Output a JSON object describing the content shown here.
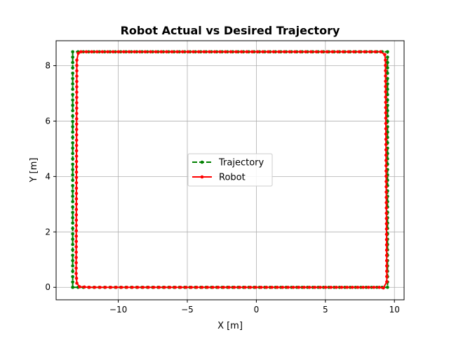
{
  "chart_data": {
    "type": "line",
    "title": "Robot Actual vs Desired Trajectory",
    "xlabel": "X [m]",
    "ylabel": "Y [m]",
    "xlim": [
      -14.5,
      10.7
    ],
    "ylim": [
      -0.45,
      8.9
    ],
    "xticks": [
      -10,
      -5,
      0,
      5,
      10
    ],
    "yticks": [
      0,
      2,
      4,
      6,
      8
    ],
    "grid": true,
    "legend_position": "center",
    "series": [
      {
        "name": "Trajectory",
        "color": "#008000",
        "style": "dashed",
        "marker": "circle",
        "path": [
          [
            -13.3,
            0.0
          ],
          [
            -13.3,
            8.5
          ],
          [
            9.5,
            8.5
          ],
          [
            9.5,
            0.0
          ],
          [
            -13.3,
            0.0
          ]
        ]
      },
      {
        "name": "Robot",
        "color": "#ff0000",
        "style": "solid",
        "marker": "circle",
        "path": [
          [
            -12.1,
            0.0
          ],
          [
            -12.8,
            0.02
          ],
          [
            -13.0,
            0.15
          ],
          [
            -13.05,
            0.5
          ],
          [
            -13.0,
            8.2
          ],
          [
            -12.9,
            8.45
          ],
          [
            -12.7,
            8.5
          ],
          [
            9.0,
            8.5
          ],
          [
            9.3,
            8.4
          ],
          [
            9.35,
            8.2
          ],
          [
            9.45,
            0.2
          ],
          [
            9.2,
            -0.02
          ],
          [
            8.9,
            0.0
          ],
          [
            -12.1,
            0.0
          ]
        ]
      }
    ]
  }
}
